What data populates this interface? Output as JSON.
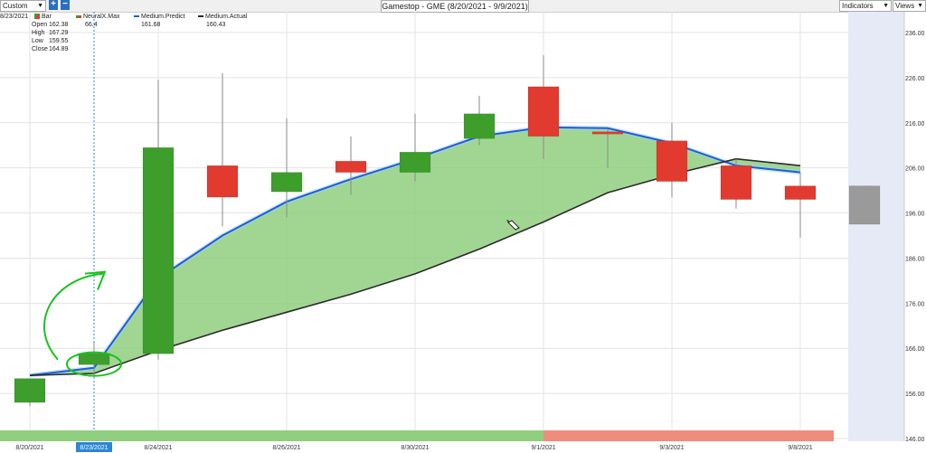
{
  "toolbar": {
    "period_select": "Custom",
    "add_label": "+",
    "remove_label": "−",
    "title": "Gamestop - GME (8/20/2021 - 9/9/2021)",
    "indicators_label": "Indicators",
    "views_label": "Views"
  },
  "legend": {
    "date": "8/23/2021",
    "bar_label": "Bar",
    "neuralx_label": "NeuralX.Max",
    "neuralx_value": "66.4",
    "predict_label": "Medium.Predict",
    "predict_value": "161.68",
    "actual_label": "Medium.Actual",
    "actual_value": "160.43",
    "ohlc": [
      {
        "label": "Open",
        "value": "162.38"
      },
      {
        "label": "High",
        "value": "167.29"
      },
      {
        "label": "Low",
        "value": "159.55"
      },
      {
        "label": "Close",
        "value": "164.89"
      }
    ]
  },
  "chart_data": {
    "type": "candlestick",
    "ylim": [
      146,
      236
    ],
    "y_ticks": [
      "236.00",
      "226.00",
      "216.00",
      "206.00",
      "196.00",
      "186.00",
      "176.00",
      "166.00",
      "156.00",
      "146.00"
    ],
    "candles": [
      {
        "date": "8/20/2021",
        "open": 154.0,
        "high": 158.5,
        "low": 153.2,
        "close": 159.3
      },
      {
        "date": "8/23/2021",
        "open": 162.38,
        "high": 167.29,
        "low": 159.55,
        "close": 164.89
      },
      {
        "date": "8/24/2021",
        "open": 164.8,
        "high": 225.5,
        "low": 163.5,
        "close": 210.5
      },
      {
        "date": "8/25/2021",
        "open": 206.5,
        "high": 227.0,
        "low": 193.0,
        "close": 199.5
      },
      {
        "date": "8/26/2021",
        "open": 200.7,
        "high": 217.0,
        "low": 195.0,
        "close": 205.0
      },
      {
        "date": "8/27/2021",
        "open": 207.5,
        "high": 213.0,
        "low": 200.0,
        "close": 205.0
      },
      {
        "date": "8/30/2021",
        "open": 205.0,
        "high": 218.0,
        "low": 203.0,
        "close": 209.5
      },
      {
        "date": "8/31/2021",
        "open": 212.5,
        "high": 222.0,
        "low": 211.0,
        "close": 218.0
      },
      {
        "date": "9/1/2021",
        "open": 224.0,
        "high": 231.0,
        "low": 208.0,
        "close": 213.0
      },
      {
        "date": "9/2/2021",
        "open": 214.0,
        "high": 214.5,
        "low": 206.0,
        "close": 213.5
      },
      {
        "date": "9/3/2021",
        "open": 212.0,
        "high": 216.0,
        "low": 199.5,
        "close": 203.0
      },
      {
        "date": "9/7/2021",
        "open": 206.5,
        "high": 208.0,
        "low": 197.0,
        "close": 199.0
      },
      {
        "date": "9/8/2021",
        "open": 202.0,
        "high": 205.0,
        "low": 190.5,
        "close": 199.0
      },
      {
        "date": "9/9/2021",
        "open": 202.0,
        "high": 202.0,
        "low": 193.5,
        "close": 193.5
      }
    ],
    "series": [
      {
        "name": "Medium.Predict",
        "values": [
          160.0,
          161.68,
          181.5,
          191.0,
          198.5,
          203.5,
          208.0,
          213.0,
          215.0,
          214.8,
          211.5,
          206.5,
          205.0
        ]
      },
      {
        "name": "Medium.Actual",
        "values": [
          160.0,
          160.43,
          165.5,
          170.0,
          174.0,
          178.0,
          182.5,
          188.0,
          194.0,
          200.5,
          204.5,
          208.0,
          206.5
        ]
      }
    ],
    "x_labels": [
      {
        "index": 0,
        "label": "8/20/2021"
      },
      {
        "index": 1,
        "label": "8/23/2021",
        "selected": true
      },
      {
        "index": 2,
        "label": "8/24/2021"
      },
      {
        "index": 4,
        "label": "8/26/2021"
      },
      {
        "index": 6,
        "label": "8/30/2021"
      },
      {
        "index": 8,
        "label": "9/1/2021"
      },
      {
        "index": 10,
        "label": "9/3/2021"
      },
      {
        "index": 12,
        "label": "9/8/2021"
      }
    ],
    "signal_bar": [
      {
        "from_index": 0,
        "to_index": 8,
        "signal": "up",
        "color": "#8fcf7f"
      },
      {
        "from_index": 8,
        "to_index": 12,
        "signal": "down",
        "color": "#f08c7e"
      }
    ],
    "forecast_index": 13,
    "crosshair_index": 1,
    "colors": {
      "up": "#3d9e2c",
      "down": "#e23a2e",
      "forecast": "#9a9a9a",
      "fill": "#8fcf7f",
      "predict": "#1f5fd6",
      "actual": "#2b2b2b"
    }
  }
}
